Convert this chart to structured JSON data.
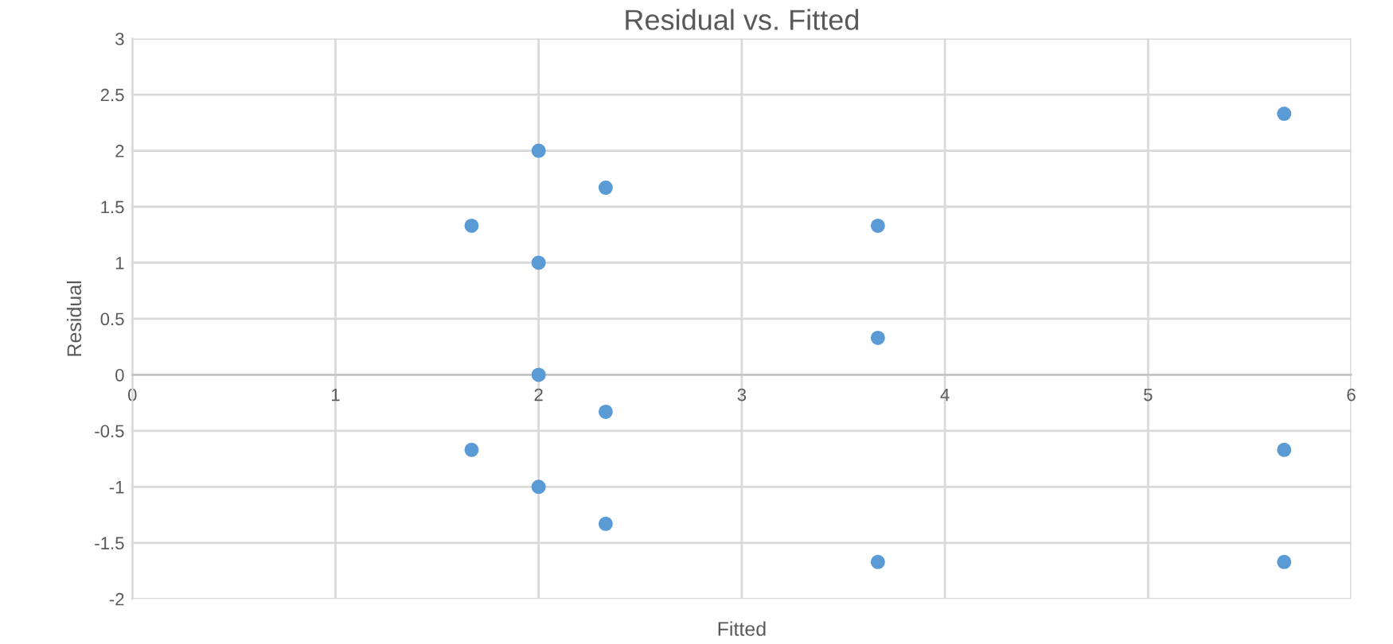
{
  "chart_data": {
    "type": "scatter",
    "title": "Residual vs. Fitted",
    "xlabel": "Fitted",
    "ylabel": "Residual",
    "x": [
      1.67,
      1.67,
      2,
      2,
      2,
      2,
      2.33,
      2.33,
      2.33,
      3.67,
      3.67,
      3.67,
      5.67,
      5.67,
      5.67
    ],
    "values": [
      1.33,
      -0.67,
      2,
      1,
      0,
      -1,
      1.67,
      -0.33,
      -1.33,
      1.33,
      0.33,
      -1.67,
      2.33,
      -0.67,
      -1.67
    ],
    "color": "#5b9bd5",
    "marker": "circle",
    "xlim": [
      0,
      6
    ],
    "xticks": [
      0,
      1,
      2,
      3,
      4,
      5,
      6
    ],
    "ylim": [
      -2,
      3
    ],
    "yticks": [
      -2,
      -1.5,
      -1,
      -0.5,
      0,
      0.5,
      1,
      1.5,
      2,
      2.5,
      3
    ],
    "grid": true,
    "legend": false
  }
}
